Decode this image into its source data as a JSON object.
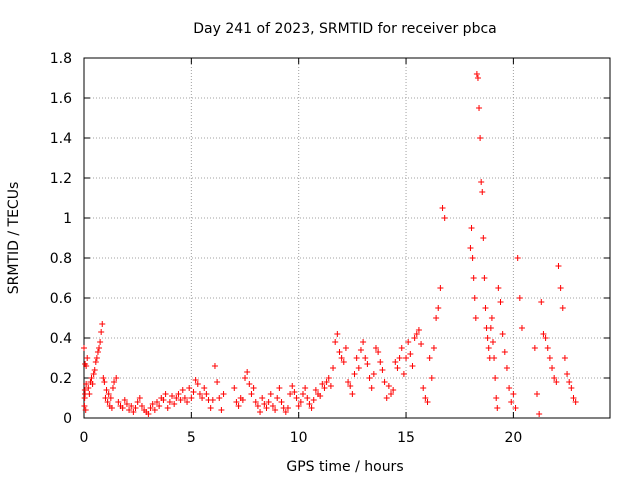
{
  "chart_data": {
    "type": "scatter",
    "title": "Day 241 of 2023, SRMTID for receiver pbca",
    "xlabel": "GPS time / hours",
    "ylabel": "SRMTID / TECUs",
    "xlim": [
      0,
      24.5
    ],
    "ylim": [
      0,
      1.8
    ],
    "xticks": [
      0,
      5,
      10,
      15,
      20
    ],
    "xtick_labels": [
      "0",
      "5",
      "10",
      "15",
      "20"
    ],
    "yticks": [
      0,
      0.2,
      0.4,
      0.6,
      0.8,
      1.0,
      1.2,
      1.4,
      1.6,
      1.8
    ],
    "ytick_labels": [
      "0",
      "0.2",
      "0.4",
      "0.6",
      "0.8",
      "1",
      "1.2",
      "1.4",
      "1.6",
      "1.8"
    ],
    "grid": true,
    "marker": "plus",
    "color": "#ff0000",
    "series": [
      {
        "name": "SRMTID",
        "x": [
          0.0,
          0.05,
          0.1,
          0.15,
          0.2,
          0.25,
          0.3,
          0.35,
          0.4,
          0.45,
          0.5,
          0.55,
          0.6,
          0.65,
          0.7,
          0.75,
          0.8,
          0.85,
          0.9,
          0.95,
          1.0,
          1.05,
          1.1,
          1.15,
          1.2,
          1.25,
          1.3,
          1.35,
          1.4,
          1.5,
          1.6,
          1.7,
          1.8,
          1.9,
          2.0,
          2.1,
          2.2,
          2.3,
          2.4,
          2.5,
          2.6,
          2.7,
          2.8,
          2.9,
          3.0,
          3.1,
          3.2,
          3.3,
          3.4,
          3.5,
          3.6,
          3.7,
          3.8,
          3.9,
          4.0,
          4.1,
          4.2,
          4.3,
          4.4,
          4.5,
          4.6,
          4.7,
          4.8,
          4.9,
          5.0,
          5.1,
          5.2,
          5.3,
          5.4,
          5.5,
          5.6,
          5.7,
          5.8,
          5.9,
          6.0,
          6.1,
          6.2,
          6.3,
          6.4,
          6.5,
          7.0,
          7.1,
          7.2,
          7.3,
          7.4,
          7.5,
          7.6,
          7.7,
          7.8,
          7.9,
          8.0,
          8.1,
          8.2,
          8.3,
          8.4,
          8.5,
          8.6,
          8.7,
          8.8,
          8.9,
          9.0,
          9.1,
          9.2,
          9.3,
          9.4,
          9.5,
          9.6,
          9.7,
          9.8,
          9.9,
          10.0,
          10.1,
          10.2,
          10.3,
          10.4,
          10.5,
          10.6,
          10.7,
          10.8,
          10.9,
          11.0,
          11.1,
          11.2,
          11.3,
          11.4,
          11.5,
          11.6,
          11.7,
          11.8,
          11.9,
          12.0,
          12.1,
          12.2,
          12.3,
          12.4,
          12.5,
          12.6,
          12.7,
          12.8,
          12.9,
          13.0,
          13.1,
          13.2,
          13.3,
          13.4,
          13.5,
          13.6,
          13.7,
          13.8,
          13.9,
          14.0,
          14.1,
          14.2,
          14.3,
          14.4,
          14.5,
          14.6,
          14.7,
          14.8,
          14.9,
          15.0,
          15.1,
          15.2,
          15.3,
          15.4,
          15.5,
          15.6,
          15.7,
          15.8,
          15.9,
          16.0,
          16.1,
          16.2,
          16.3,
          16.4,
          16.5,
          16.6,
          16.7,
          16.8,
          18.0,
          18.05,
          18.1,
          18.15,
          18.2,
          18.25,
          18.3,
          18.35,
          18.4,
          18.45,
          18.5,
          18.55,
          18.6,
          18.65,
          18.7,
          18.75,
          18.8,
          18.85,
          18.9,
          18.95,
          19.0,
          19.05,
          19.1,
          19.15,
          19.2,
          19.25,
          19.3,
          19.4,
          19.5,
          19.6,
          19.7,
          19.8,
          19.9,
          20.0,
          20.1,
          20.2,
          20.3,
          20.4,
          21.0,
          21.1,
          21.2,
          21.3,
          21.4,
          21.5,
          21.6,
          21.7,
          21.8,
          21.9,
          22.0,
          22.1,
          22.2,
          22.3,
          22.4,
          22.5,
          22.6,
          22.7,
          22.8,
          22.9,
          0.02,
          0.08,
          0.05,
          0.1,
          0.04,
          0.03,
          0.35,
          0.27,
          0.26,
          0.3,
          0.15,
          0.12,
          0.18,
          0.2,
          0.17,
          0.22,
          0.24,
          0.28,
          0.3,
          0.33,
          0.35,
          0.38,
          0.43,
          0.47,
          0.2,
          0.18,
          0.1,
          0.14,
          0.08,
          0.12,
          0.06,
          0.1,
          0.05,
          0.15,
          0.18,
          0.2,
          0.08,
          0.06,
          0.05,
          0.09,
          0.07,
          0.04,
          0.06,
          0.03,
          0.05,
          0.08,
          0.1,
          0.06,
          0.04,
          0.03,
          0.02,
          0.05,
          0.07,
          0.04,
          0.08,
          0.06,
          0.1,
          0.09,
          0.12,
          0.05,
          0.08,
          0.11,
          0.07,
          0.1,
          0.12,
          0.09,
          0.14,
          0.1,
          0.08,
          0.15,
          0.1,
          0.13,
          0.19,
          0.17,
          0.12,
          0.1,
          0.15,
          0.12,
          0.09,
          0.05,
          0.09,
          0.26,
          0.18,
          0.1,
          0.04,
          0.12,
          0.15,
          0.08,
          0.06,
          0.1,
          0.09,
          0.2,
          0.23,
          0.17,
          0.12,
          0.15,
          0.08,
          0.06,
          0.03,
          0.1,
          0.07,
          0.05,
          0.08,
          0.12,
          0.06,
          0.04,
          0.1,
          0.15,
          0.08,
          0.05,
          0.03,
          0.05,
          0.12,
          0.16,
          0.13,
          0.1,
          0.06,
          0.08,
          0.12,
          0.15,
          0.1,
          0.07,
          0.05,
          0.09,
          0.14,
          0.12,
          0.11,
          0.17,
          0.15,
          0.18,
          0.2,
          0.16,
          0.25,
          0.38,
          0.42,
          0.33,
          0.3,
          0.28,
          0.35,
          0.18,
          0.16,
          0.12,
          0.22,
          0.3,
          0.25,
          0.34,
          0.38,
          0.3,
          0.27,
          0.2,
          0.15,
          0.22,
          0.35,
          0.33,
          0.28,
          0.24,
          0.18,
          0.1,
          0.16,
          0.12,
          0.14,
          0.28,
          0.25,
          0.3,
          0.35,
          0.22,
          0.3,
          0.38,
          0.32,
          0.26,
          0.4,
          0.42,
          0.44,
          0.37,
          0.15,
          0.1,
          0.08,
          0.3,
          0.2,
          0.35,
          0.5,
          0.55,
          0.65,
          1.05,
          1.0,
          0.85,
          0.95,
          0.8,
          0.7,
          0.6,
          0.5,
          1.72,
          1.7,
          1.55,
          1.4,
          1.18,
          1.13,
          0.9,
          0.7,
          0.55,
          0.45,
          0.4,
          0.35,
          0.3,
          0.45,
          0.5,
          0.38,
          0.3,
          0.2,
          0.1,
          0.05,
          0.65,
          0.58,
          0.42,
          0.33,
          0.25,
          0.15,
          0.08,
          0.12,
          0.05,
          0.8,
          0.6,
          0.45,
          0.35,
          0.12,
          0.02,
          0.58,
          0.42,
          0.4,
          0.35,
          0.3,
          0.25,
          0.2,
          0.18,
          0.76,
          0.65,
          0.55,
          0.3,
          0.22,
          0.18,
          0.15,
          0.1,
          0.08,
          0.06,
          0.04,
          0.12,
          0.17,
          0.14,
          0.1,
          0.05
        ]
      }
    ]
  }
}
